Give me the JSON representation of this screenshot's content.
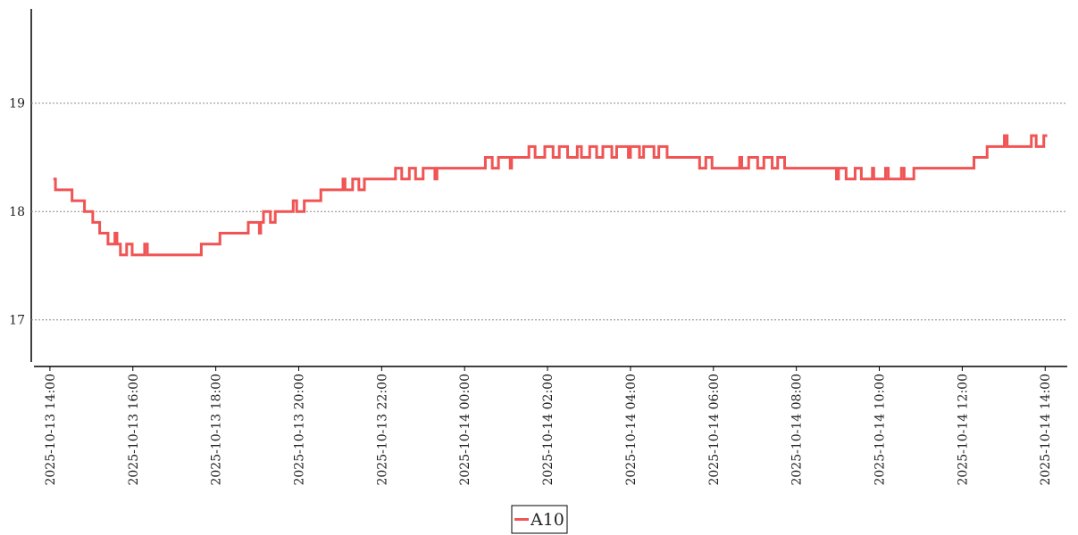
{
  "chart_data": {
    "type": "step",
    "grid": true,
    "legend": "bottom",
    "xlim": [
      "2025-10-13 13:33",
      "2025-10-14 14:32"
    ],
    "ylim": [
      16.57,
      19.87
    ],
    "yticks": [
      17,
      18,
      19
    ],
    "xticks": [
      "2025-10-13 14:00",
      "2025-10-13 16:00",
      "2025-10-13 18:00",
      "2025-10-13 20:00",
      "2025-10-13 22:00",
      "2025-10-14 00:00",
      "2025-10-14 02:00",
      "2025-10-14 04:00",
      "2025-10-14 06:00",
      "2025-10-14 08:00",
      "2025-10-14 10:00",
      "2025-10-14 12:00",
      "2025-10-14 14:00"
    ],
    "x": [
      "2025-10-13 14:05",
      "2025-10-13 14:08",
      "2025-10-13 14:32",
      "2025-10-13 14:50",
      "2025-10-13 15:02",
      "2025-10-13 15:12",
      "2025-10-13 15:24",
      "2025-10-13 15:34",
      "2025-10-13 15:37",
      "2025-10-13 15:42",
      "2025-10-13 15:51",
      "2025-10-13 15:59",
      "2025-10-13 16:17",
      "2025-10-13 16:21",
      "2025-10-13 17:39",
      "2025-10-13 18:06",
      "2025-10-13 18:47",
      "2025-10-13 19:03",
      "2025-10-13 19:05",
      "2025-10-13 19:09",
      "2025-10-13 19:19",
      "2025-10-13 19:26",
      "2025-10-13 19:52",
      "2025-10-13 19:57",
      "2025-10-13 20:08",
      "2025-10-13 20:32",
      "2025-10-13 21:04",
      "2025-10-13 21:07",
      "2025-10-13 21:18",
      "2025-10-13 21:27",
      "2025-10-13 21:35",
      "2025-10-13 22:20",
      "2025-10-13 22:29",
      "2025-10-13 22:40",
      "2025-10-13 22:49",
      "2025-10-13 23:00",
      "2025-10-13 23:17",
      "2025-10-13 23:20",
      "2025-10-14 00:30",
      "2025-10-14 00:40",
      "2025-10-14 00:49",
      "2025-10-14 01:06",
      "2025-10-14 01:08",
      "2025-10-14 01:33",
      "2025-10-14 01:42",
      "2025-10-14 01:56",
      "2025-10-14 02:08",
      "2025-10-14 02:17",
      "2025-10-14 02:29",
      "2025-10-14 02:43",
      "2025-10-14 02:49",
      "2025-10-14 03:01",
      "2025-10-14 03:11",
      "2025-10-14 03:20",
      "2025-10-14 03:33",
      "2025-10-14 03:40",
      "2025-10-14 03:57",
      "2025-10-14 04:00",
      "2025-10-14 04:13",
      "2025-10-14 04:19",
      "2025-10-14 04:34",
      "2025-10-14 04:41",
      "2025-10-14 04:53",
      "2025-10-14 05:40",
      "2025-10-14 05:49",
      "2025-10-14 05:58",
      "2025-10-14 06:38",
      "2025-10-14 06:41",
      "2025-10-14 06:51",
      "2025-10-14 07:04",
      "2025-10-14 07:13",
      "2025-10-14 07:25",
      "2025-10-14 07:33",
      "2025-10-14 07:43",
      "2025-10-14 08:58",
      "2025-10-14 09:01",
      "2025-10-14 09:12",
      "2025-10-14 09:25",
      "2025-10-14 09:34",
      "2025-10-14 09:50",
      "2025-10-14 09:52",
      "2025-10-14 10:09",
      "2025-10-14 10:13",
      "2025-10-14 10:32",
      "2025-10-14 10:36",
      "2025-10-14 10:50",
      "2025-10-14 12:17",
      "2025-10-14 12:36",
      "2025-10-14 13:01",
      "2025-10-14 13:05",
      "2025-10-14 13:40",
      "2025-10-14 13:47",
      "2025-10-14 13:58",
      "2025-10-14 14:03"
    ],
    "series": [
      {
        "name": "A10",
        "color": "#f05454",
        "values": [
          18.3,
          18.2,
          18.1,
          18.0,
          17.9,
          17.8,
          17.7,
          17.8,
          17.7,
          17.6,
          17.7,
          17.6,
          17.7,
          17.6,
          17.7,
          17.8,
          17.9,
          17.8,
          17.9,
          18.0,
          17.9,
          18.0,
          18.1,
          18.0,
          18.1,
          18.2,
          18.3,
          18.2,
          18.3,
          18.2,
          18.3,
          18.4,
          18.3,
          18.4,
          18.3,
          18.4,
          18.3,
          18.4,
          18.5,
          18.4,
          18.5,
          18.4,
          18.5,
          18.6,
          18.5,
          18.6,
          18.5,
          18.6,
          18.5,
          18.6,
          18.5,
          18.6,
          18.5,
          18.6,
          18.5,
          18.6,
          18.5,
          18.6,
          18.5,
          18.6,
          18.5,
          18.6,
          18.5,
          18.4,
          18.5,
          18.4,
          18.5,
          18.4,
          18.5,
          18.4,
          18.5,
          18.4,
          18.5,
          18.4,
          18.3,
          18.4,
          18.3,
          18.4,
          18.3,
          18.4,
          18.3,
          18.4,
          18.3,
          18.4,
          18.3,
          18.4,
          18.5,
          18.6,
          18.7,
          18.6,
          18.7,
          18.6,
          18.7,
          18.7
        ]
      }
    ]
  }
}
